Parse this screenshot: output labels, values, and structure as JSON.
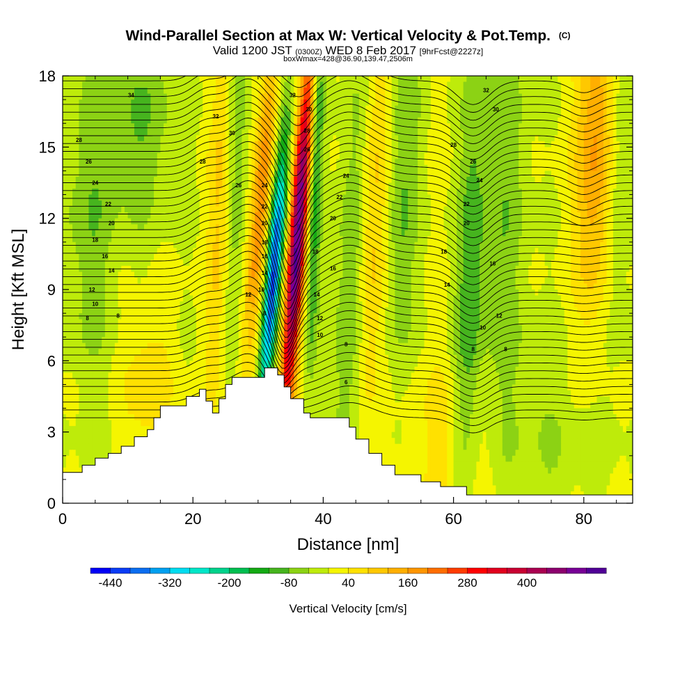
{
  "title": {
    "main": "Wind-Parallel Section at Max W: Vertical Velocity & Pot.Temp.",
    "main_mark": "(C)",
    "line2_a": "Valid 1200 JST",
    "line2_b": "(0300Z)",
    "line2_c": "WED 8 Feb 2017",
    "line2_d": "[9hrFcst@2227z]",
    "line3": "boxWmax=428@36.90,139.47,2506m"
  },
  "chart_data": {
    "type": "heatmap",
    "xlabel": "Distance [nm]",
    "ylabel": "Height [Kft MSL]",
    "xlim": [
      0,
      87.5
    ],
    "ylim": [
      0,
      18
    ],
    "xticks": [
      "0",
      "20",
      "40",
      "60",
      "80"
    ],
    "yticks": [
      "0",
      "3",
      "6",
      "9",
      "12",
      "15",
      "18"
    ],
    "colorbar": {
      "label": "Vertical Velocity [cm/s]",
      "ticks": [
        "-440",
        "-320",
        "-200",
        "-80",
        "40",
        "160",
        "280",
        "400"
      ],
      "colors": [
        "#0000f5",
        "#0a3cf5",
        "#0a6ef0",
        "#00a0f0",
        "#00dcf0",
        "#00e6c8",
        "#00d28c",
        "#00be50",
        "#14aa14",
        "#46b41e",
        "#8cd214",
        "#beeb0a",
        "#f5f500",
        "#ffe100",
        "#ffc800",
        "#ffaf00",
        "#ff9600",
        "#ff6e00",
        "#ff3c00",
        "#ff0000",
        "#e1001e",
        "#c80032",
        "#aa0050",
        "#8c006e",
        "#780096",
        "#500096"
      ]
    },
    "terrain_kft": [
      [
        0,
        1.3
      ],
      [
        3,
        1.3
      ],
      [
        3,
        1.6
      ],
      [
        5,
        1.6
      ],
      [
        5,
        1.9
      ],
      [
        7,
        1.9
      ],
      [
        7,
        2.1
      ],
      [
        9,
        2.1
      ],
      [
        9,
        2.4
      ],
      [
        11,
        2.4
      ],
      [
        11,
        2.8
      ],
      [
        13,
        2.8
      ],
      [
        13,
        3.1
      ],
      [
        14,
        3.1
      ],
      [
        14,
        3.6
      ],
      [
        15,
        3.6
      ],
      [
        15,
        4.1
      ],
      [
        19,
        4.1
      ],
      [
        19,
        4.5
      ],
      [
        21,
        4.5
      ],
      [
        21,
        4.8
      ],
      [
        22,
        4.8
      ],
      [
        22,
        4.3
      ],
      [
        23,
        4.3
      ],
      [
        23,
        3.8
      ],
      [
        24,
        3.8
      ],
      [
        24,
        4.4
      ],
      [
        25,
        4.4
      ],
      [
        25,
        5.0
      ],
      [
        26,
        5.0
      ],
      [
        26,
        5.3
      ],
      [
        31,
        5.3
      ],
      [
        31,
        5.7
      ],
      [
        33,
        5.7
      ],
      [
        33,
        5.4
      ],
      [
        34,
        5.4
      ],
      [
        34,
        4.9
      ],
      [
        35,
        4.9
      ],
      [
        35,
        4.4
      ],
      [
        37,
        4.4
      ],
      [
        37,
        3.8
      ],
      [
        38,
        3.8
      ],
      [
        38,
        3.6
      ],
      [
        44,
        3.6
      ],
      [
        44,
        3.2
      ],
      [
        45,
        3.2
      ],
      [
        45,
        2.7
      ],
      [
        47,
        2.7
      ],
      [
        47,
        2.1
      ],
      [
        49,
        2.1
      ],
      [
        49,
        1.6
      ],
      [
        51,
        1.6
      ],
      [
        51,
        1.2
      ],
      [
        55,
        1.2
      ],
      [
        55,
        0.9
      ],
      [
        58,
        0.9
      ],
      [
        58,
        0.7
      ],
      [
        62,
        0.7
      ],
      [
        62,
        0.35
      ],
      [
        87.5,
        0.35
      ]
    ],
    "wcells": [
      {
        "x": 36,
        "y": 11,
        "sx": 0.9,
        "sy": 5.5,
        "tilt": 0.25,
        "w": 520
      },
      {
        "x": 32.3,
        "y": 9.5,
        "sx": 0.8,
        "sy": 4,
        "tilt": 0.3,
        "w": -420
      },
      {
        "x": 30.5,
        "y": 13,
        "sx": 1.0,
        "sy": 5,
        "tilt": 0.3,
        "w": 180
      },
      {
        "x": 38.8,
        "y": 13.5,
        "sx": 0.7,
        "sy": 6,
        "tilt": 0.1,
        "w": -150
      },
      {
        "x": 26,
        "y": 13,
        "sx": 1.3,
        "sy": 7,
        "tilt": 0.15,
        "w": -100
      },
      {
        "x": 24.5,
        "y": 12,
        "sx": 1.4,
        "sy": 6,
        "tilt": 0.1,
        "w": 120
      },
      {
        "x": 44.5,
        "y": 10,
        "sx": 1.6,
        "sy": 7,
        "tilt": 0.15,
        "w": -110
      },
      {
        "x": 47.5,
        "y": 12,
        "sx": 1.8,
        "sy": 6,
        "tilt": 0.1,
        "w": 110
      },
      {
        "x": 52,
        "y": 13,
        "sx": 1.8,
        "sy": 6,
        "tilt": 0.1,
        "w": -90
      },
      {
        "x": 62.5,
        "y": 9,
        "sx": 1.6,
        "sy": 8,
        "tilt": 0.12,
        "w": -110
      },
      {
        "x": 68,
        "y": 12,
        "sx": 2.5,
        "sy": 7,
        "tilt": 0.1,
        "w": -70
      },
      {
        "x": 82,
        "y": 15,
        "sx": 2.2,
        "sy": 5,
        "tilt": 0.08,
        "w": 170
      },
      {
        "x": 85,
        "y": 14,
        "sx": 1.5,
        "sy": 5,
        "tilt": 0.05,
        "w": -80
      },
      {
        "x": 12,
        "y": 16,
        "sx": 4,
        "sy": 3,
        "tilt": 0,
        "w": -80
      },
      {
        "x": 4,
        "y": 12,
        "sx": 3,
        "sy": 5,
        "tilt": 0,
        "w": -70
      },
      {
        "x": 13,
        "y": 5,
        "sx": 2.5,
        "sy": 2,
        "tilt": 0,
        "w": 70
      },
      {
        "x": 74,
        "y": 3,
        "sx": 6,
        "sy": 3,
        "tilt": 0,
        "w": -40
      },
      {
        "x": 60,
        "y": 2.5,
        "sx": 5,
        "sy": 2.5,
        "tilt": 0,
        "w": 60
      }
    ],
    "theta_labels": [
      {
        "x": 10.5,
        "y": 17.2,
        "t": "34"
      },
      {
        "x": 2.5,
        "y": 15.3,
        "t": "28"
      },
      {
        "x": 4,
        "y": 14.4,
        "t": "26"
      },
      {
        "x": 5,
        "y": 13.5,
        "t": "24"
      },
      {
        "x": 7,
        "y": 12.6,
        "t": "22"
      },
      {
        "x": 7.5,
        "y": 11.8,
        "t": "20"
      },
      {
        "x": 5,
        "y": 11.1,
        "t": "18"
      },
      {
        "x": 6.5,
        "y": 10.4,
        "t": "16"
      },
      {
        "x": 7.5,
        "y": 9.8,
        "t": "14"
      },
      {
        "x": 4.5,
        "y": 9.0,
        "t": "12"
      },
      {
        "x": 5,
        "y": 8.4,
        "t": "10"
      },
      {
        "x": 3.8,
        "y": 7.8,
        "t": "8"
      },
      {
        "x": 8.5,
        "y": 7.9,
        "t": "8"
      },
      {
        "x": 23.5,
        "y": 16.3,
        "t": "32"
      },
      {
        "x": 26,
        "y": 15.6,
        "t": "30"
      },
      {
        "x": 21.5,
        "y": 14.4,
        "t": "28"
      },
      {
        "x": 27,
        "y": 13.4,
        "t": "26"
      },
      {
        "x": 31,
        "y": 13.4,
        "t": "24"
      },
      {
        "x": 31,
        "y": 12.5,
        "t": "22"
      },
      {
        "x": 31,
        "y": 11.8,
        "t": "20"
      },
      {
        "x": 31,
        "y": 11.0,
        "t": "18"
      },
      {
        "x": 31,
        "y": 10.4,
        "t": "16"
      },
      {
        "x": 31,
        "y": 9.7,
        "t": "14"
      },
      {
        "x": 28.5,
        "y": 8.8,
        "t": "12"
      },
      {
        "x": 30.5,
        "y": 9.0,
        "t": "10"
      },
      {
        "x": 31,
        "y": 8.0,
        "t": "8"
      },
      {
        "x": 35.3,
        "y": 17.2,
        "t": "32"
      },
      {
        "x": 37.8,
        "y": 16.6,
        "t": "30"
      },
      {
        "x": 37.5,
        "y": 15.7,
        "t": "28"
      },
      {
        "x": 37.5,
        "y": 14.9,
        "t": "26"
      },
      {
        "x": 43.5,
        "y": 13.8,
        "t": "24"
      },
      {
        "x": 42.5,
        "y": 12.9,
        "t": "22"
      },
      {
        "x": 41.5,
        "y": 12.0,
        "t": "20"
      },
      {
        "x": 38.8,
        "y": 10.6,
        "t": "18"
      },
      {
        "x": 41.5,
        "y": 9.9,
        "t": "16"
      },
      {
        "x": 39,
        "y": 8.8,
        "t": "14"
      },
      {
        "x": 39.5,
        "y": 7.8,
        "t": "12"
      },
      {
        "x": 39.5,
        "y": 7.1,
        "t": "10"
      },
      {
        "x": 43.5,
        "y": 6.7,
        "t": "8"
      },
      {
        "x": 43.5,
        "y": 5.1,
        "t": "6"
      },
      {
        "x": 65,
        "y": 17.4,
        "t": "32"
      },
      {
        "x": 66.5,
        "y": 16.6,
        "t": "30"
      },
      {
        "x": 60,
        "y": 15.1,
        "t": "28"
      },
      {
        "x": 63,
        "y": 14.4,
        "t": "26"
      },
      {
        "x": 64,
        "y": 13.6,
        "t": "24"
      },
      {
        "x": 62,
        "y": 12.6,
        "t": "22"
      },
      {
        "x": 62,
        "y": 11.8,
        "t": "20"
      },
      {
        "x": 58.5,
        "y": 10.6,
        "t": "18"
      },
      {
        "x": 66,
        "y": 10.1,
        "t": "16"
      },
      {
        "x": 59,
        "y": 9.2,
        "t": "14"
      },
      {
        "x": 67,
        "y": 7.9,
        "t": "12"
      },
      {
        "x": 64.5,
        "y": 7.4,
        "t": "10"
      },
      {
        "x": 63,
        "y": 6.5,
        "t": "8"
      },
      {
        "x": 68,
        "y": 6.5,
        "t": "8"
      }
    ]
  }
}
